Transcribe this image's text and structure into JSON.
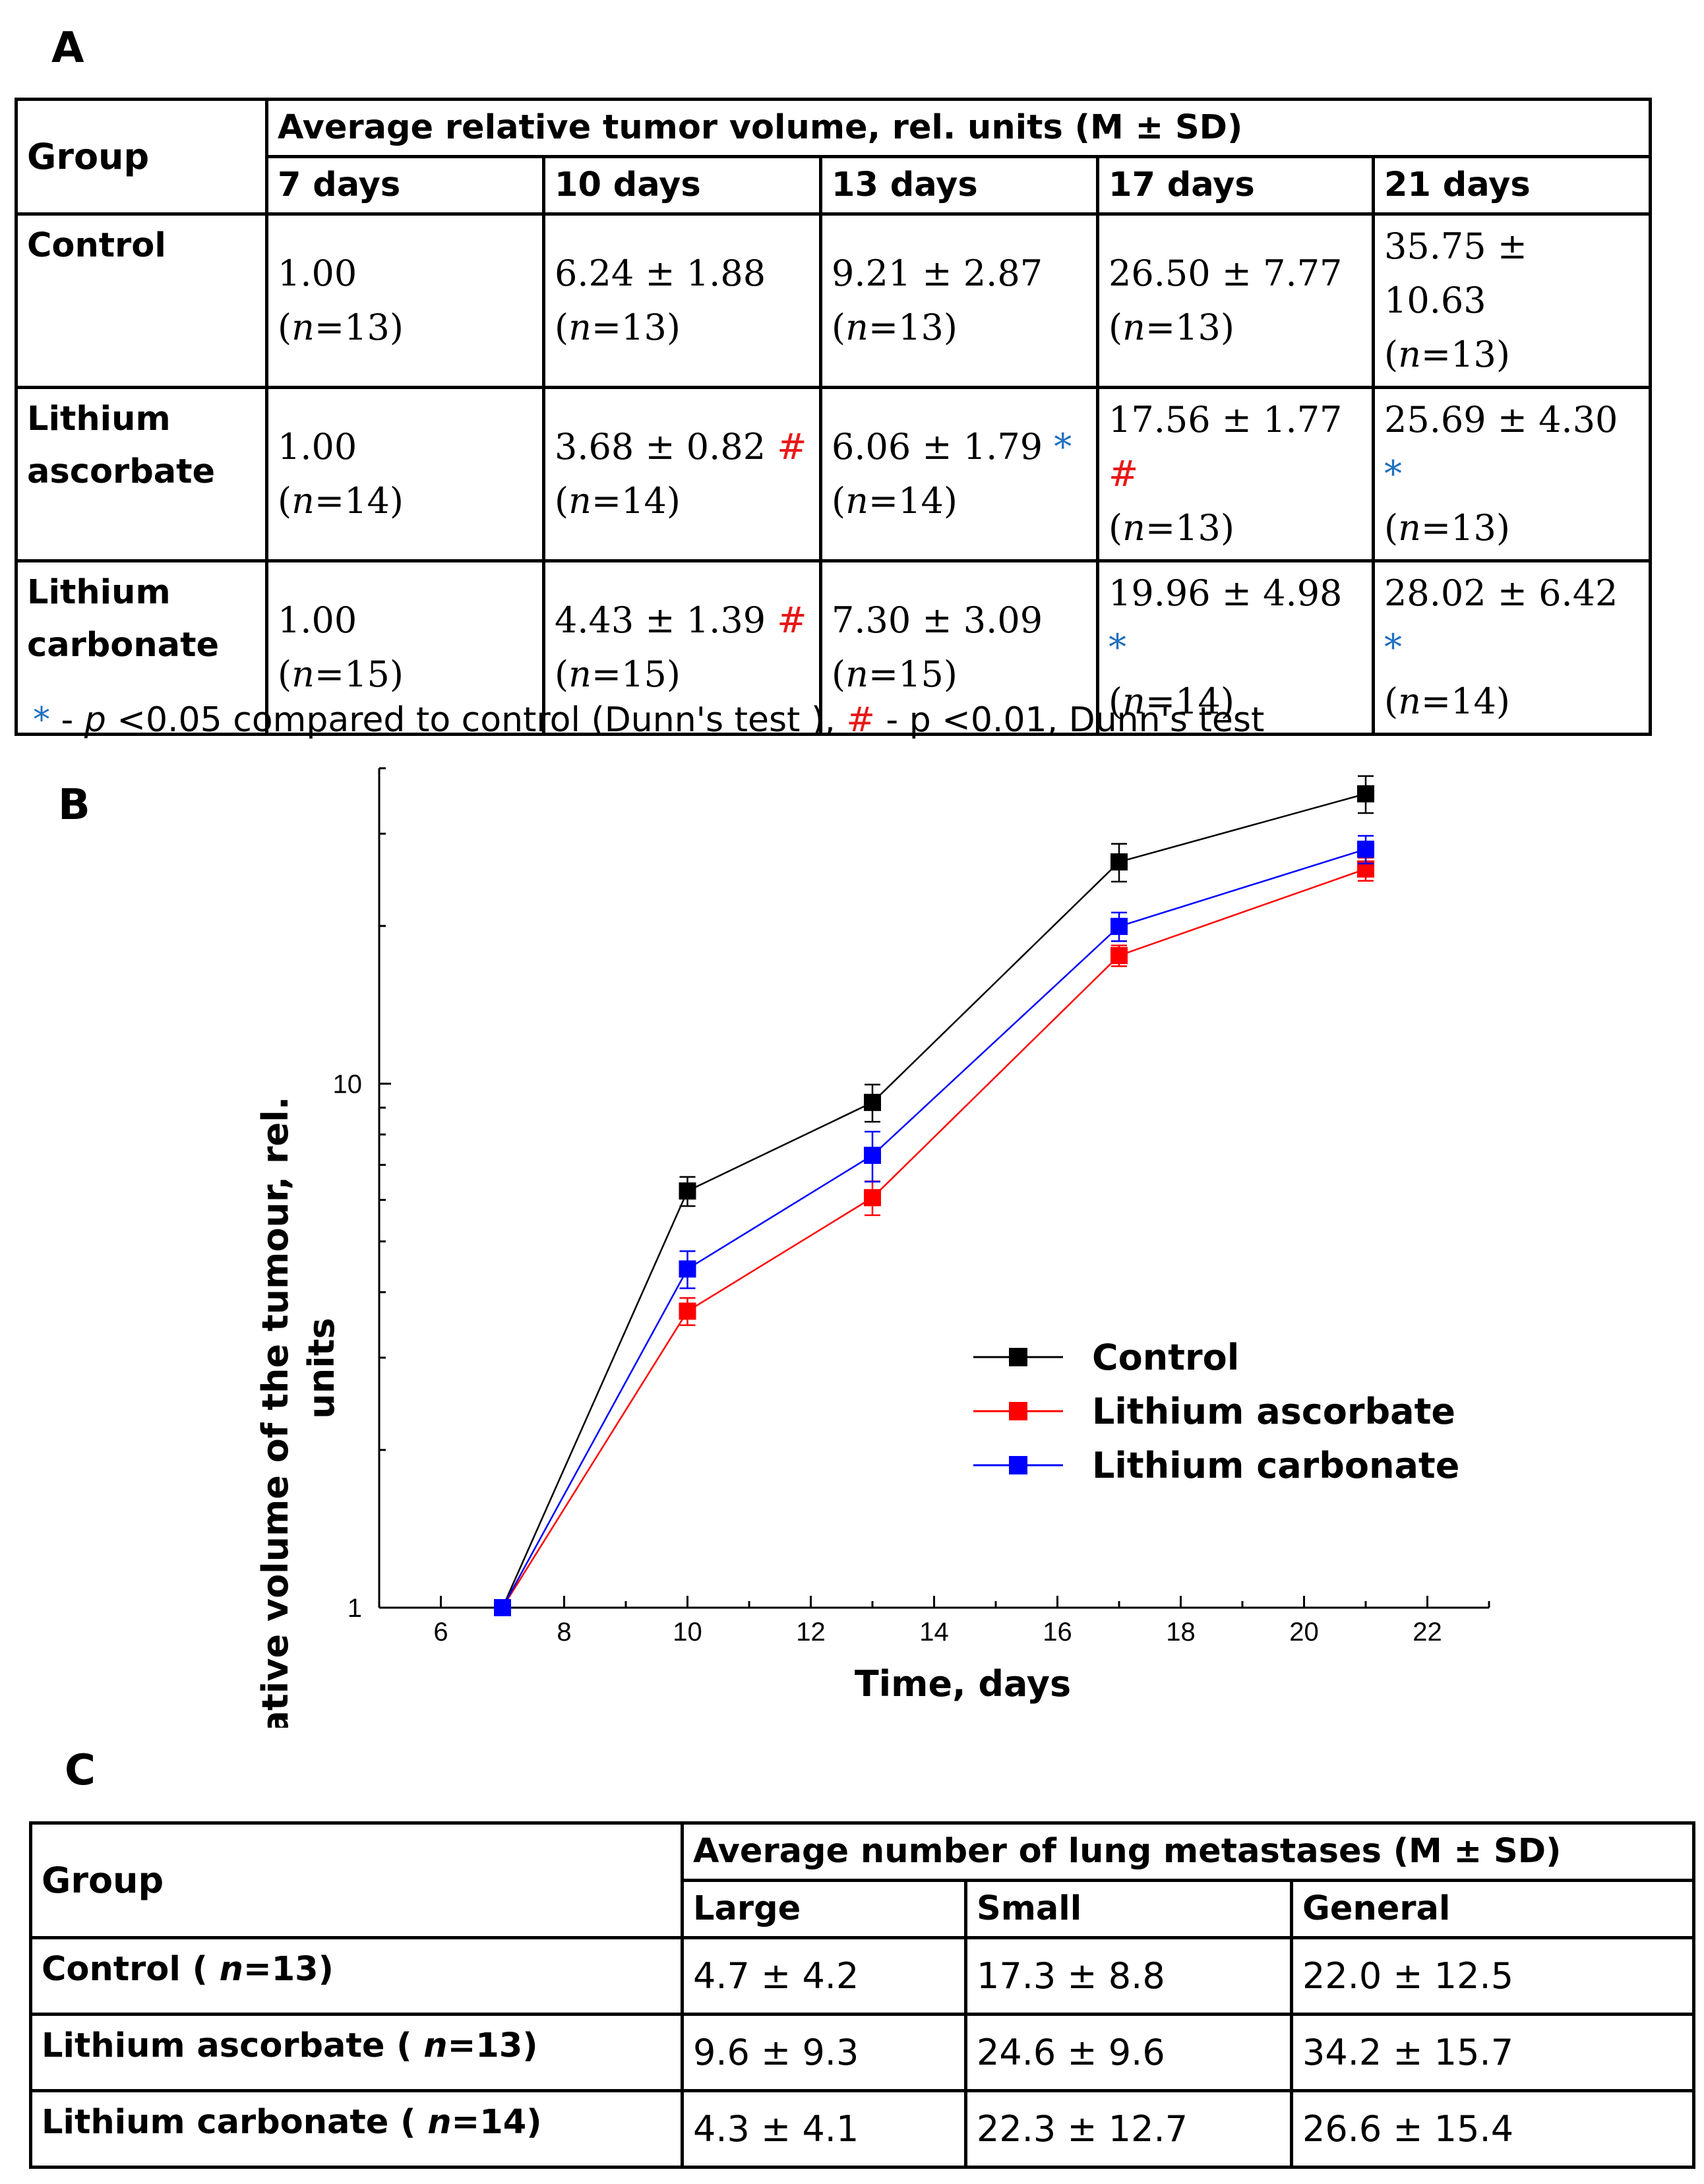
{
  "panel_labels": {
    "a": "A",
    "b": "B",
    "c": "C"
  },
  "table_a": {
    "group_header": "Group",
    "span_header": "Average relative tumor volume, rel. units (M ± SD)",
    "columns": [
      "7 days",
      "10 days",
      "13 days",
      "17 days",
      "21 days"
    ],
    "rows": [
      {
        "label": "Control",
        "cells": [
          {
            "lines": [
              "1.00",
              "(n=13)"
            ],
            "mark": ""
          },
          {
            "lines": [
              "6.24 ± 1.88",
              "(n=13)"
            ],
            "mark": ""
          },
          {
            "lines": [
              "9.21 ± 2.87",
              "(n=13)"
            ],
            "mark": ""
          },
          {
            "lines": [
              "26.50 ± 7.77",
              "(n=13)"
            ],
            "mark": ""
          },
          {
            "lines": [
              "35.75 ±",
              "10.63",
              "(n=13)"
            ],
            "mark": ""
          }
        ]
      },
      {
        "label": "Lithium ascorbate",
        "cells": [
          {
            "lines": [
              "1.00",
              "(n=14)"
            ],
            "mark": ""
          },
          {
            "lines": [
              "3.68 ± 0.82 #",
              "(n=14)"
            ],
            "mark": "#"
          },
          {
            "lines": [
              "6.06 ± 1.79 *",
              "(n=14)"
            ],
            "mark": "*"
          },
          {
            "lines": [
              "17.56 ± 1.77",
              "#",
              "(n=13)"
            ],
            "mark": "#"
          },
          {
            "lines": [
              "25.69 ± 4.30",
              "*",
              "(n=13)"
            ],
            "mark": "*"
          }
        ]
      },
      {
        "label": "Lithium carbonate",
        "cells": [
          {
            "lines": [
              "1.00",
              "(n=15)"
            ],
            "mark": ""
          },
          {
            "lines": [
              "4.43 ± 1.39 #",
              "(n=15)"
            ],
            "mark": "#"
          },
          {
            "lines": [
              "7.30 ± 3.09",
              "(n=15)"
            ],
            "mark": ""
          },
          {
            "lines": [
              "19.96 ± 4.98",
              "*",
              "(n=14)"
            ],
            "mark": "*"
          },
          {
            "lines": [
              "28.02 ± 6.42",
              "*",
              "(n=14)"
            ],
            "mark": "*"
          }
        ]
      }
    ]
  },
  "footnote": {
    "star": "*",
    "p_symbol": "p",
    "text1": " <0.05 compared to control (Dunn's test ),",
    "hash": "#",
    "text2": " - p <0.01, Dunn's test",
    "dash": " - "
  },
  "chart_data": {
    "type": "line",
    "x_label": "Time, days",
    "y_label": "Relative volume of the tumour, rel. units",
    "y_scale": "log",
    "x_range": [
      5,
      23
    ],
    "y_range": [
      1,
      40
    ],
    "x_ticks": [
      6,
      8,
      10,
      12,
      14,
      16,
      18,
      20,
      22
    ],
    "y_ticks": [
      1,
      10
    ],
    "x": [
      7,
      10,
      13,
      17,
      21
    ],
    "legend_position": "center-right",
    "series": [
      {
        "name": "Control",
        "color": "#000000",
        "values": [
          1.0,
          6.24,
          9.21,
          26.5,
          35.75
        ],
        "errors": [
          0,
          0.4,
          0.75,
          2.2,
          2.9
        ]
      },
      {
        "name": "Lithium ascorbate",
        "color": "#ff0000",
        "values": [
          1.0,
          3.68,
          6.06,
          17.56,
          25.69
        ],
        "errors": [
          0,
          0.22,
          0.45,
          0.8,
          1.3
        ]
      },
      {
        "name": "Lithium carbonate",
        "color": "#0000ff",
        "values": [
          1.0,
          4.43,
          7.3,
          19.96,
          28.02
        ],
        "errors": [
          0,
          0.36,
          0.8,
          1.25,
          1.7
        ]
      }
    ]
  },
  "table_c": {
    "group_header": "Group",
    "span_header": "Average number of lung metastases (M ± SD)",
    "columns": [
      "Large",
      "Small",
      "General"
    ],
    "rows": [
      {
        "label": "Control ( n=13)",
        "cells": [
          "4.7 ± 4.2",
          "17.3 ± 8.8",
          "22.0 ± 12.5"
        ]
      },
      {
        "label": "Lithium ascorbate ( n=13)",
        "cells": [
          "9.6 ± 9.3",
          "24.6 ± 9.6",
          "34.2 ± 15.7"
        ]
      },
      {
        "label": "Lithium carbonate ( n=14)",
        "cells": [
          "4.3 ± 4.1",
          "22.3 ± 12.7",
          "26.6 ± 15.4"
        ]
      }
    ]
  }
}
